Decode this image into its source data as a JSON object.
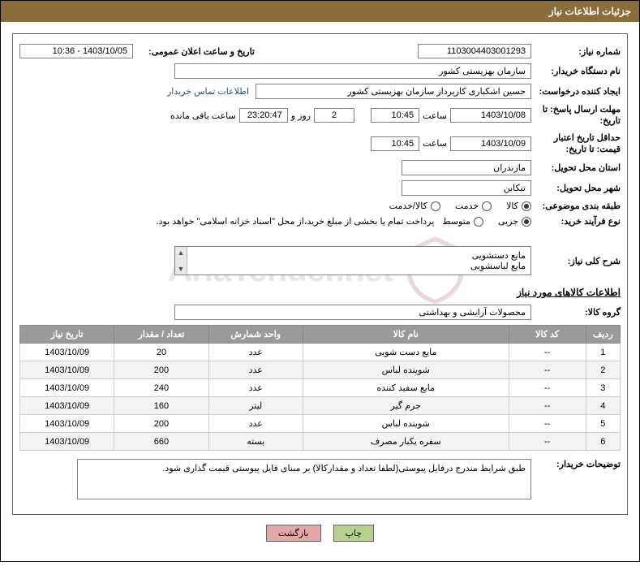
{
  "title_bar": "جزئیات اطلاعات نیاز",
  "fields": {
    "need_no_label": "شماره نیاز:",
    "need_no": "1103004403001293",
    "announce_label": "تاریخ و ساعت اعلان عمومی:",
    "announce_value": "1403/10/05 - 10:36",
    "buyer_org_label": "نام دستگاه خریدار:",
    "buyer_org": "سازمان بهزیستی کشور",
    "requester_label": "ایجاد کننده درخواست:",
    "requester": "حسین اشکباری کارپرداز سازمان بهزیستی کشور",
    "contact_link": "اطلاعات تماس خریدار",
    "deadline_label": "مهلت ارسال پاسخ: تا تاریخ:",
    "deadline_date": "1403/10/08",
    "time_label": "ساعت",
    "deadline_time": "10:45",
    "days_remain": "2",
    "days_prefix": "روز و",
    "time_remain": "23:20:47",
    "time_suffix": "ساعت باقی مانده",
    "min_valid_label": "حداقل تاریخ اعتبار قیمت: تا تاریخ:",
    "min_valid_date": "1403/10/09",
    "min_valid_time": "10:45",
    "delivery_province_label": "استان محل تحویل:",
    "delivery_province": "مازندران",
    "delivery_city_label": "شهر محل تحویل:",
    "delivery_city": "تنکابن",
    "category_label": "طبقه بندی موضوعی:",
    "radio_goods": "کالا",
    "radio_service": "خدمت",
    "radio_goods_service": "کالا/خدمت",
    "purchase_type_label": "نوع فرآیند خرید:",
    "radio_small": "جزیی",
    "radio_medium": "متوسط",
    "purchase_note": "پرداخت تمام یا بخشی از مبلغ خرید،از محل \"اسناد خزانه اسلامی\" خواهد بود.",
    "overall_desc_label": "شرح کلی نیاز:",
    "overall_desc_l1": "مایع دستشویی",
    "overall_desc_l2": "مایع لباسشویی",
    "goods_info_title": "اطلاعات کالاهای مورد نیاز",
    "goods_group_label": "گروه کالا:",
    "goods_group": "محصولات آرایشی و بهداشتی",
    "buyer_notes_label": "توضیحات خریدار:",
    "buyer_notes": "طبق شرایط مندرج درفایل پیوستی(لطفا تعداد و مقدارکالا) بر مبنای فایل پیوستی قیمت گذاری شود."
  },
  "table": {
    "headers": {
      "row": "ردیف",
      "code": "کد کالا",
      "name": "نام کالا",
      "unit": "واحد شمارش",
      "qty": "تعداد / مقدار",
      "date": "تاریخ نیاز"
    },
    "rows": [
      {
        "row": "1",
        "code": "--",
        "name": "مایع دست شویی",
        "unit": "عدد",
        "qty": "20",
        "date": "1403/10/09"
      },
      {
        "row": "2",
        "code": "--",
        "name": "شوینده لباس",
        "unit": "عدد",
        "qty": "200",
        "date": "1403/10/09"
      },
      {
        "row": "3",
        "code": "--",
        "name": "مایع سفید کننده",
        "unit": "عدد",
        "qty": "240",
        "date": "1403/10/09"
      },
      {
        "row": "4",
        "code": "--",
        "name": "جرم گیر",
        "unit": "لیتر",
        "qty": "160",
        "date": "1403/10/09"
      },
      {
        "row": "5",
        "code": "--",
        "name": "شوینده لباس",
        "unit": "عدد",
        "qty": "200",
        "date": "1403/10/09"
      },
      {
        "row": "6",
        "code": "--",
        "name": "سفره یکبار مصرف",
        "unit": "بسته",
        "qty": "660",
        "date": "1403/10/09"
      }
    ]
  },
  "buttons": {
    "print": "چاپ",
    "back": "بازگشت"
  },
  "watermark": "AriaTender.net"
}
